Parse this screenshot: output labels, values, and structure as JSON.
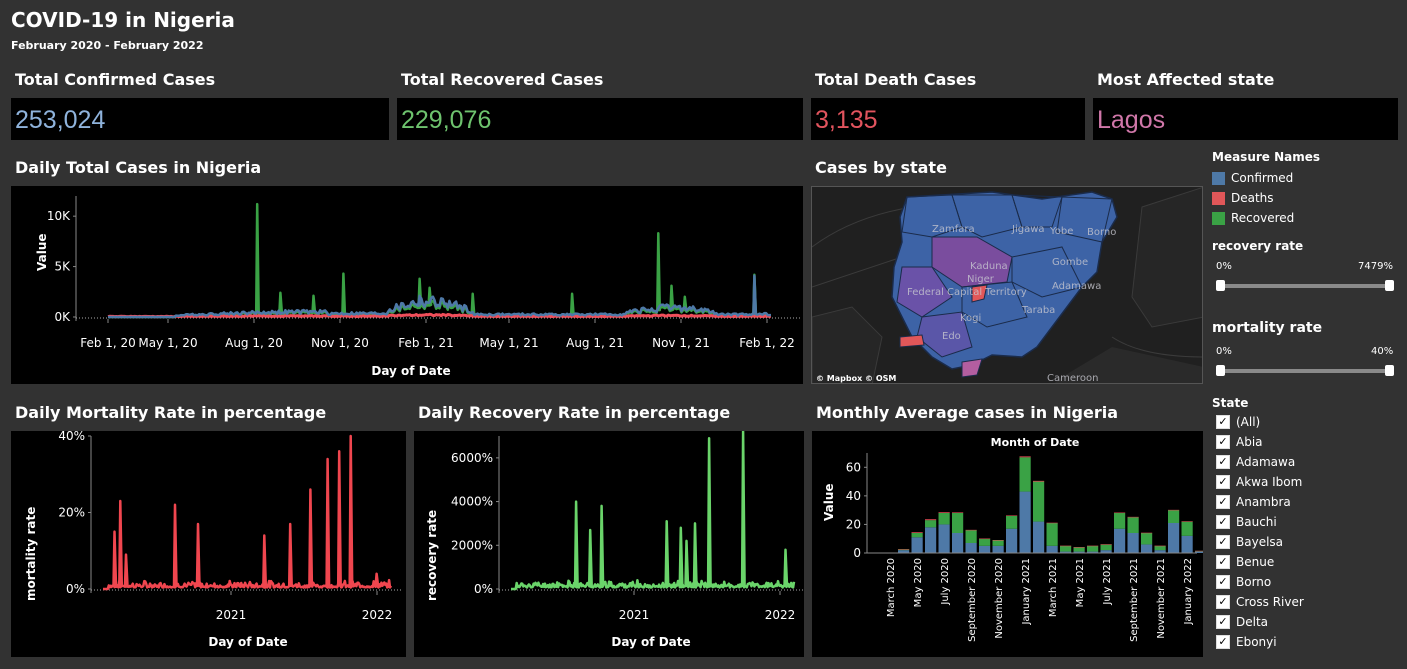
{
  "header": {
    "title": "COVID-19 in Nigeria",
    "subtitle": "February 2020 - February 2022"
  },
  "kpis": [
    {
      "label": "Total Confirmed Cases",
      "value": "253,024",
      "color": "#8fb3dc"
    },
    {
      "label": "Total Recovered Cases",
      "value": "229,076",
      "color": "#6ec36e"
    },
    {
      "label": "Total Death Cases",
      "value": "3,135",
      "color": "#e2545e"
    },
    {
      "label": "Most Affected state",
      "value": "Lagos",
      "color": "#d077a9"
    }
  ],
  "colors": {
    "confirmed": "#4e79a7",
    "deaths": "#f04e5a",
    "recovered": "#3aa245",
    "mortality": "#f0464f",
    "recovery": "#6ad46a"
  },
  "daily_total": {
    "title": "Daily Total Cases in Nigeria",
    "chart_data": {
      "type": "line",
      "xlabel": "Day of Date",
      "ylabel": "Value",
      "x_ticks": [
        "Feb 1, 20",
        "May 1, 20",
        "Aug 1, 20",
        "Nov 1, 20",
        "Feb 1, 21",
        "May 1, 21",
        "Aug 1, 21",
        "Nov 1, 21",
        "Feb 1, 22"
      ],
      "y_ticks": [
        "0K",
        "5K",
        "10K"
      ],
      "ylim": [
        0,
        12000
      ],
      "series": [
        {
          "name": "Recovered",
          "spikes": [
            [
              0.225,
              11200
            ],
            [
              0.26,
              2400
            ],
            [
              0.31,
              2100
            ],
            [
              0.355,
              4300
            ],
            [
              0.47,
              3800
            ],
            [
              0.485,
              2900
            ],
            [
              0.55,
              2300
            ],
            [
              0.7,
              2300
            ],
            [
              0.83,
              8300
            ],
            [
              0.85,
              3100
            ],
            [
              0.87,
              2000
            ],
            [
              0.975,
              4200
            ],
            [
              1.01,
              1500
            ]
          ]
        },
        {
          "name": "Confirmed",
          "spikes": [
            [
              0.47,
              2100
            ],
            [
              0.975,
              4100
            ]
          ]
        },
        {
          "name": "Deaths",
          "spikes": []
        }
      ]
    }
  },
  "map": {
    "title": "Cases by state",
    "labels": [
      "Zamfara",
      "Jigawa",
      "Yobe",
      "Borno",
      "Kaduna",
      "Niger",
      "Gombe",
      "Federal Capital Territory",
      "Adamawa",
      "Taraba",
      "Kogi",
      "Edo",
      "Cameroon"
    ],
    "attribution": "© Mapbox  © OSM"
  },
  "legend": {
    "title": "Measure Names",
    "items": [
      {
        "label": "Confirmed",
        "color": "#4e79a7"
      },
      {
        "label": "Deaths",
        "color": "#e15759"
      },
      {
        "label": "Recovered",
        "color": "#3aa245"
      }
    ]
  },
  "filters": {
    "recovery": {
      "title": "recovery rate",
      "min": "0%",
      "max": "7479%"
    },
    "mortality": {
      "title": "mortality rate",
      "min": "0%",
      "max": "40%"
    }
  },
  "state_filter": {
    "title": "State",
    "items": [
      "(All)",
      "Abia",
      "Adamawa",
      "Akwa Ibom",
      "Anambra",
      "Bauchi",
      "Bayelsa",
      "Benue",
      "Borno",
      "Cross River",
      "Delta",
      "Ebonyi"
    ]
  },
  "mortality_chart": {
    "title": "Daily Mortality Rate in percentage",
    "chart_data": {
      "type": "line",
      "xlabel": "Day of Date",
      "ylabel": "mortality rate",
      "x_ticks": [
        "2021",
        "2022"
      ],
      "y_ticks": [
        "0%",
        "20%",
        "40%"
      ],
      "ylim": [
        0,
        40
      ],
      "spikes": [
        [
          0.04,
          15
        ],
        [
          0.06,
          23
        ],
        [
          0.08,
          9
        ],
        [
          0.25,
          22
        ],
        [
          0.33,
          17
        ],
        [
          0.56,
          14
        ],
        [
          0.65,
          17
        ],
        [
          0.72,
          26
        ],
        [
          0.78,
          34
        ],
        [
          0.82,
          36
        ],
        [
          0.86,
          40
        ],
        [
          0.95,
          4
        ]
      ]
    }
  },
  "recovery_chart": {
    "title": "Daily Recovery Rate in percentage",
    "chart_data": {
      "type": "line",
      "xlabel": "Day of Date",
      "ylabel": "recovery rate",
      "x_ticks": [
        "2021",
        "2022"
      ],
      "y_ticks": [
        "0%",
        "2000%",
        "4000%",
        "6000%"
      ],
      "ylim": [
        0,
        7000
      ],
      "spikes": [
        [
          0.23,
          4000
        ],
        [
          0.28,
          2700
        ],
        [
          0.32,
          3800
        ],
        [
          0.55,
          3100
        ],
        [
          0.6,
          2800
        ],
        [
          0.62,
          2200
        ],
        [
          0.65,
          3000
        ],
        [
          0.7,
          6900
        ],
        [
          0.82,
          7200
        ],
        [
          0.97,
          1800
        ]
      ]
    }
  },
  "monthly_chart": {
    "title": "Monthly Average cases in Nigeria",
    "chart_data": {
      "type": "bar",
      "title": "Month of Date",
      "ylabel": "Value",
      "y_ticks": [
        "0",
        "20",
        "40",
        "60"
      ],
      "ylim": [
        0,
        70
      ],
      "x_labels": [
        "March 2020",
        "May 2020",
        "July 2020",
        "September 2020",
        "November 2020",
        "January 2021",
        "March 2021",
        "May 2021",
        "July 2021",
        "September 2021",
        "November 2021",
        "January 2022"
      ],
      "categories": [
        "Feb 2020",
        "Mar 2020",
        "Apr 2020",
        "May 2020",
        "Jun 2020",
        "Jul 2020",
        "Aug 2020",
        "Sep 2020",
        "Oct 2020",
        "Nov 2020",
        "Dec 2020",
        "Jan 2021",
        "Feb 2021",
        "Mar 2021",
        "Apr 2021",
        "May 2021",
        "Jun 2021",
        "Jul 2021",
        "Aug 2021",
        "Sep 2021",
        "Oct 2021",
        "Nov 2021",
        "Dec 2021",
        "Jan 2022",
        "Feb 2022"
      ],
      "series": [
        {
          "name": "Confirmed",
          "values": [
            0,
            0.3,
            2,
            11,
            18,
            20,
            14,
            7,
            5,
            5,
            17,
            43,
            22,
            5,
            1,
            1,
            1,
            2,
            17,
            14,
            6,
            2,
            21,
            12,
            1
          ]
        },
        {
          "name": "Recovered",
          "values": [
            0,
            0,
            0.5,
            3,
            5,
            8,
            14,
            9,
            5,
            4,
            9,
            24,
            28,
            16,
            4,
            3,
            4,
            4,
            11,
            11,
            8,
            3,
            9,
            10,
            0.5
          ]
        },
        {
          "name": "Deaths",
          "values": [
            0,
            0,
            0.2,
            0.5,
            0.6,
            0.5,
            0.4,
            0.2,
            0.1,
            0.1,
            0.3,
            0.6,
            0.5,
            0.2,
            0.1,
            0.1,
            0.1,
            0.1,
            0.3,
            0.3,
            0.2,
            0.1,
            0.2,
            0.2,
            0.05
          ]
        }
      ]
    }
  }
}
